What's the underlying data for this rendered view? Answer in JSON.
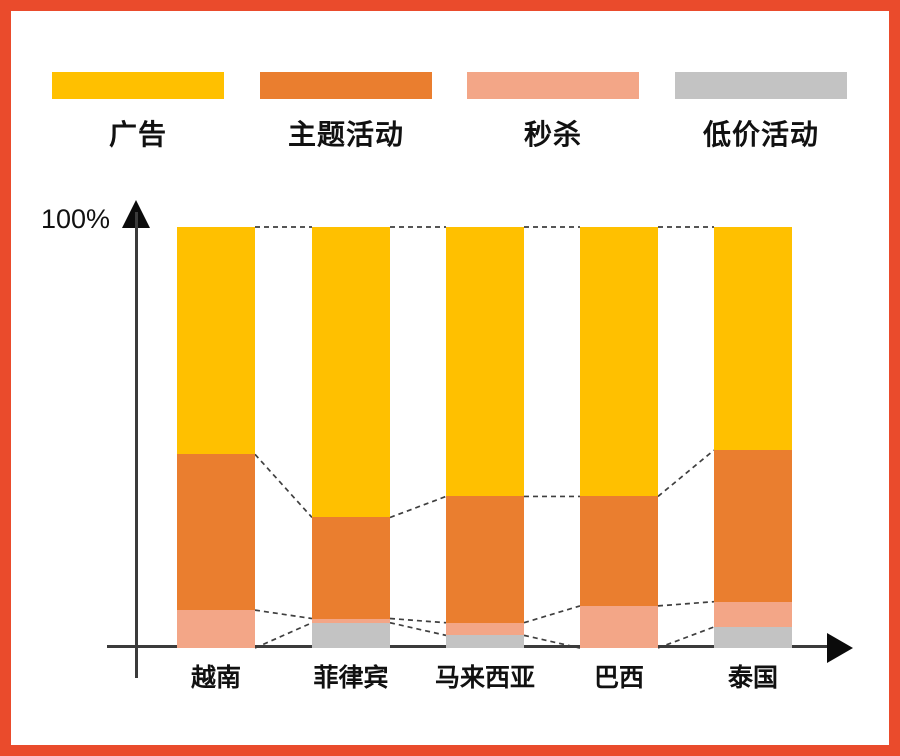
{
  "frame_color": "#EA4B2C",
  "legend": {
    "items": [
      {
        "label": "广告",
        "color": "#FFC000",
        "swatch_icon": "legend-swatch-yellow"
      },
      {
        "label": "主题活动",
        "color": "#EA7E2F",
        "swatch_icon": "legend-swatch-orange"
      },
      {
        "label": "秒杀",
        "color": "#F3A687",
        "swatch_icon": "legend-swatch-salmon"
      },
      {
        "label": "低价活动",
        "color": "#C3C3C3",
        "swatch_icon": "legend-swatch-gray"
      }
    ]
  },
  "axis": {
    "y_max_label": "100%"
  },
  "chart_data": {
    "type": "bar",
    "subtype": "stacked-100-percent",
    "title": "",
    "xlabel": "",
    "ylabel": "",
    "ylim": [
      0,
      100
    ],
    "grid": false,
    "legend_position": "top",
    "connectors": "dashed-lines-between-segment-boundaries",
    "categories": [
      "越南",
      "菲律宾",
      "马来西亚",
      "巴西",
      "泰国"
    ],
    "series": [
      {
        "name": "广告",
        "color": "#FFC000",
        "values": [
          54,
          69,
          64,
          64,
          53
        ]
      },
      {
        "name": "主题活动",
        "color": "#EA7E2F",
        "values": [
          37,
          24,
          30,
          26,
          36
        ]
      },
      {
        "name": "秒杀",
        "color": "#F3A687",
        "values": [
          9,
          1,
          3,
          10,
          6
        ]
      },
      {
        "name": "低价活动",
        "color": "#C3C3C3",
        "values": [
          0,
          6,
          3,
          0,
          5
        ]
      }
    ]
  }
}
